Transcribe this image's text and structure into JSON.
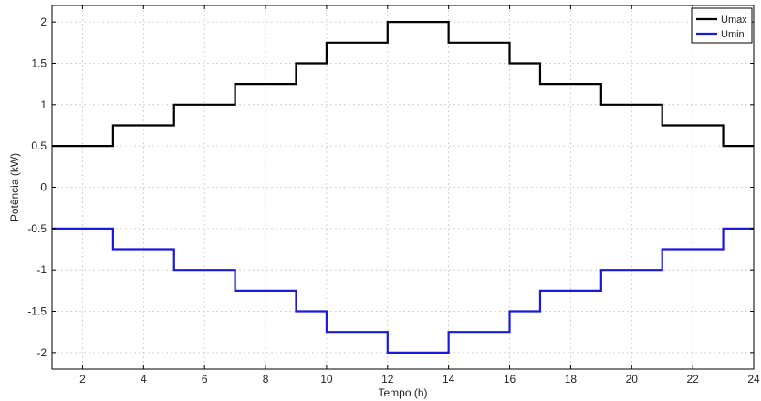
{
  "chart_data": {
    "type": "line",
    "step": true,
    "title": "",
    "xlabel": "Tempo (h)",
    "ylabel": "Potência (kW)",
    "xlim": [
      1,
      24
    ],
    "ylim": [
      -2.2,
      2.2
    ],
    "xticks": [
      2,
      4,
      6,
      8,
      10,
      12,
      14,
      16,
      18,
      20,
      22,
      24
    ],
    "yticks": [
      -2,
      -1.5,
      -1,
      -0.5,
      0,
      0.5,
      1,
      1.5,
      2
    ],
    "grid": true,
    "legend_position": "top-right",
    "series": [
      {
        "name": "Umax",
        "color": "#000000",
        "points": [
          [
            1,
            0.5
          ],
          [
            3,
            0.75
          ],
          [
            5,
            1.0
          ],
          [
            7,
            1.25
          ],
          [
            9,
            1.5
          ],
          [
            10,
            1.75
          ],
          [
            12,
            2.0
          ],
          [
            14,
            1.75
          ],
          [
            16,
            1.5
          ],
          [
            17,
            1.25
          ],
          [
            19,
            1.0
          ],
          [
            21,
            0.75
          ],
          [
            23,
            0.5
          ],
          [
            24,
            0.5
          ]
        ]
      },
      {
        "name": "Umin",
        "color": "#1a1adb",
        "points": [
          [
            1,
            -0.5
          ],
          [
            3,
            -0.75
          ],
          [
            5,
            -1.0
          ],
          [
            7,
            -1.25
          ],
          [
            9,
            -1.5
          ],
          [
            10,
            -1.75
          ],
          [
            12,
            -2.0
          ],
          [
            14,
            -1.75
          ],
          [
            16,
            -1.5
          ],
          [
            17,
            -1.25
          ],
          [
            19,
            -1.0
          ],
          [
            21,
            -0.75
          ],
          [
            23,
            -0.5
          ],
          [
            24,
            -0.5
          ]
        ]
      }
    ]
  }
}
